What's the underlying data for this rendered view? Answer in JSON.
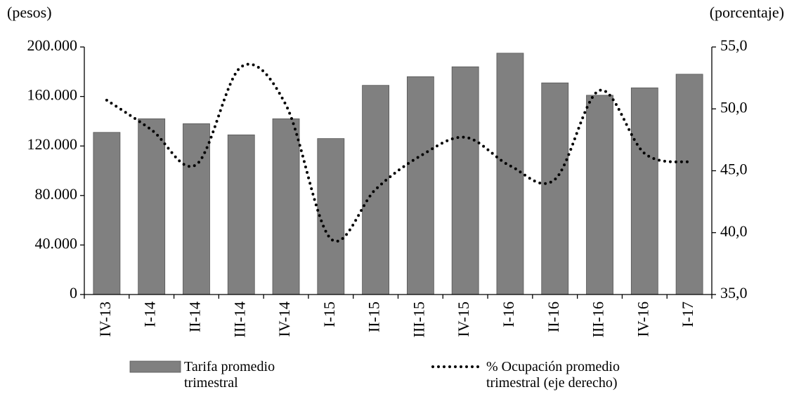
{
  "chart_data": {
    "type": "bar_line",
    "y_label": "(pesos)",
    "y2_label": "(porcentaje)",
    "categories": [
      "IV-13",
      "I-14",
      "II-14",
      "III-14",
      "IV-14",
      "I-15",
      "II-15",
      "III-15",
      "IV-15",
      "I-16",
      "II-16",
      "III-16",
      "IV-16",
      "I-17"
    ],
    "series": [
      {
        "name": "Tarifa promedio trimestral",
        "type": "bar",
        "color": "#808080",
        "values": [
          131000,
          142000,
          138000,
          129000,
          142000,
          126000,
          169000,
          176000,
          184000,
          195000,
          171000,
          161000,
          167000,
          178000
        ]
      },
      {
        "name": "% Ocupación promedio trimestral (eje derecho)",
        "type": "line",
        "axis": "y2",
        "color": "#000000",
        "values": [
          50.7,
          48.3,
          45.5,
          53.4,
          50.3,
          39.5,
          43.5,
          46.2,
          47.7,
          45.4,
          44.3,
          51.5,
          46.4,
          45.7
        ]
      }
    ],
    "ylim": [
      0,
      200000
    ],
    "yticks": [
      0,
      {
        "value": 40000,
        "label": "40.000"
      },
      {
        "value": 80000,
        "label": "80.000"
      },
      {
        "value": 120000,
        "label": "120.000"
      },
      {
        "value": 160000,
        "label": "160.000"
      },
      {
        "value": 200000,
        "label": "200.000"
      }
    ],
    "y2lim": [
      35,
      55
    ],
    "y2ticks": [
      {
        "value": 35,
        "label": "35,0"
      },
      {
        "value": 40,
        "label": "40,0"
      },
      {
        "value": 45,
        "label": "45,0"
      },
      {
        "value": 50,
        "label": "50,0"
      },
      {
        "value": 55,
        "label": "55,0"
      }
    ]
  }
}
